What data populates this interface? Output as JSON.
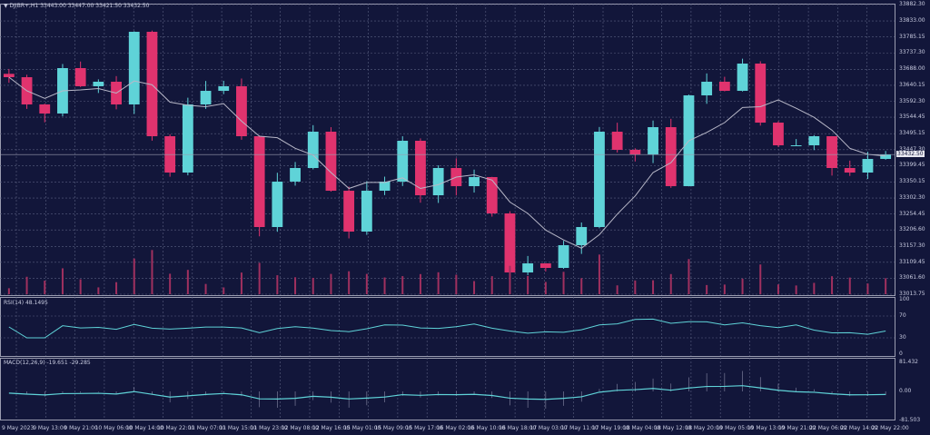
{
  "header": {
    "symbol": "DJIBR+,H1",
    "ohlc": "33443.00 33447.00 33421.50 33432.50"
  },
  "current_price_label": "33432.50",
  "rsi_label": "RSI(14) 48.1495",
  "macd_label": "MACD(12,26,9) -19.651 -29.285",
  "colors": {
    "background": "#12163a",
    "up": "#5fd3d8",
    "down": "#e0336e",
    "ma": "#b8b8c8",
    "grid": "#5a5f80"
  },
  "chart_data": [
    {
      "type": "candlestick",
      "title": "",
      "price_ticks": [
        "33882.30",
        "33833.00",
        "33785.15",
        "33737.30",
        "33688.00",
        "33640.15",
        "33592.30",
        "33544.45",
        "33495.15",
        "33447.30",
        "33399.45",
        "33350.15",
        "33302.30",
        "33254.45",
        "33206.60",
        "33157.30",
        "33109.45",
        "33061.60",
        "33013.75"
      ],
      "ylim": [
        33013.75,
        33882.3
      ],
      "closes": [
        33664.5,
        33582.8,
        33555.6,
        33691.7,
        33637.3,
        33650.9,
        33582.8,
        33800.6,
        33487.5,
        33378.6,
        33582.8,
        33623.6,
        33637.3,
        33487.5,
        33215.2,
        33351.4,
        33392.2,
        33501.1,
        33324.1,
        33201.6,
        33324.1,
        33351.4,
        33473.9,
        33310.5,
        33392.2,
        33337.8,
        33365.0,
        33256.1,
        33079.1,
        33106.3,
        33092.7,
        33160.8,
        33215.2,
        33501.1,
        33446.7,
        33433.0,
        33514.7,
        33337.8,
        33610.0,
        33650.9,
        33623.6,
        33705.3,
        33528.3,
        33460.3,
        33460.3,
        33487.5,
        33392.2,
        33378.6,
        33419.4,
        33432.5
      ],
      "overlay": "moving average",
      "volume": true
    },
    {
      "type": "line",
      "title": "RSI(14)",
      "yticks": [
        "100",
        "70",
        "30",
        "0"
      ],
      "ylim": [
        0,
        100
      ]
    },
    {
      "type": "line+histogram",
      "title": "MACD(12,26,9)",
      "yticks": [
        "81.432",
        "0.00",
        "-81.503"
      ],
      "ylim": [
        -81.503,
        81.432
      ]
    }
  ],
  "time_ticks": [
    "9 May 2023",
    "9 May 13:00",
    "9 May 21:00",
    "10 May 06:00",
    "10 May 14:00",
    "10 May 22:00",
    "11 May 07:00",
    "11 May 15:00",
    "11 May 23:00",
    "12 May 08:00",
    "12 May 16:00",
    "15 May 01:00",
    "15 May 09:00",
    "15 May 17:00",
    "16 May 02:00",
    "16 May 10:00",
    "16 May 18:00",
    "17 May 03:00",
    "17 May 11:00",
    "17 May 19:00",
    "18 May 04:00",
    "18 May 12:00",
    "18 May 20:00",
    "19 May 05:00",
    "19 May 13:00",
    "19 May 21:00",
    "22 May 06:00",
    "22 May 14:00",
    "22 May 22:00"
  ]
}
